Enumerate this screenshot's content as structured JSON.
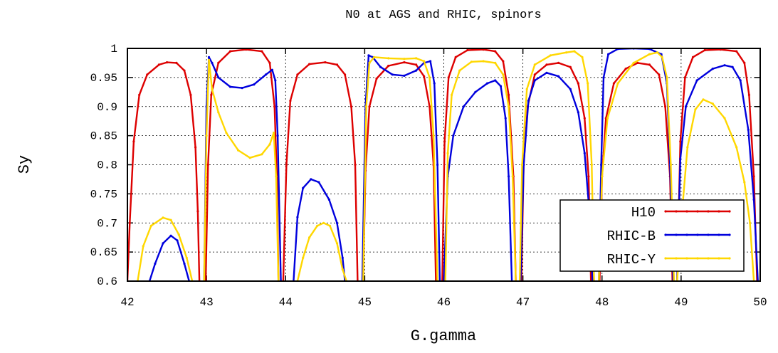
{
  "chart_data": {
    "type": "line",
    "title": "N0 at AGS and RHIC, spinors",
    "xlabel": "G.gamma",
    "ylabel": "Sy",
    "xlim": [
      42,
      50
    ],
    "ylim": [
      0.6,
      1.0
    ],
    "x_ticks": [
      42,
      43,
      44,
      45,
      46,
      47,
      48,
      49,
      50
    ],
    "x_tick_labels": [
      "42",
      "43",
      "44",
      "45",
      "46",
      "47",
      "48",
      "49",
      "50"
    ],
    "y_ticks": [
      0.6,
      0.65,
      0.7,
      0.75,
      0.8,
      0.85,
      0.9,
      0.95,
      1.0
    ],
    "y_tick_labels": [
      "0.6",
      "0.65",
      "0.7",
      "0.75",
      "0.8",
      "0.85",
      "0.9",
      "0.95",
      "1"
    ],
    "grid": true,
    "legend_position": "bottom-right",
    "series": [
      {
        "name": "H10",
        "color": "#dd0000",
        "segments": [
          [
            [
              42.0,
              0.6
            ],
            [
              42.03,
              0.7
            ],
            [
              42.08,
              0.84
            ],
            [
              42.15,
              0.92
            ],
            [
              42.25,
              0.955
            ],
            [
              42.4,
              0.972
            ],
            [
              42.5,
              0.976
            ],
            [
              42.62,
              0.975
            ],
            [
              42.72,
              0.962
            ],
            [
              42.8,
              0.92
            ],
            [
              42.86,
              0.83
            ],
            [
              42.89,
              0.72
            ],
            [
              42.91,
              0.6
            ]
          ],
          [
            [
              42.99,
              0.6
            ],
            [
              43.02,
              0.8
            ],
            [
              43.06,
              0.92
            ],
            [
              43.15,
              0.975
            ],
            [
              43.3,
              0.995
            ],
            [
              43.5,
              0.998
            ],
            [
              43.7,
              0.995
            ],
            [
              43.8,
              0.975
            ],
            [
              43.86,
              0.9
            ],
            [
              43.89,
              0.78
            ],
            [
              43.91,
              0.6
            ]
          ],
          [
            [
              43.97,
              0.6
            ],
            [
              44.01,
              0.8
            ],
            [
              44.06,
              0.91
            ],
            [
              44.15,
              0.955
            ],
            [
              44.3,
              0.973
            ],
            [
              44.5,
              0.976
            ],
            [
              44.65,
              0.972
            ],
            [
              44.75,
              0.955
            ],
            [
              44.83,
              0.9
            ],
            [
              44.88,
              0.8
            ],
            [
              44.91,
              0.6
            ]
          ],
          [
            [
              44.98,
              0.6
            ],
            [
              45.01,
              0.79
            ],
            [
              45.06,
              0.9
            ],
            [
              45.15,
              0.948
            ],
            [
              45.3,
              0.97
            ],
            [
              45.5,
              0.976
            ],
            [
              45.65,
              0.972
            ],
            [
              45.75,
              0.952
            ],
            [
              45.82,
              0.9
            ],
            [
              45.87,
              0.8
            ],
            [
              45.9,
              0.6
            ]
          ],
          [
            [
              45.98,
              0.6
            ],
            [
              46.01,
              0.84
            ],
            [
              46.06,
              0.95
            ],
            [
              46.15,
              0.985
            ],
            [
              46.3,
              0.997
            ],
            [
              46.5,
              0.998
            ],
            [
              46.65,
              0.995
            ],
            [
              46.75,
              0.978
            ],
            [
              46.82,
              0.92
            ],
            [
              46.88,
              0.78
            ],
            [
              46.91,
              0.6
            ]
          ],
          [
            [
              46.98,
              0.6
            ],
            [
              47.01,
              0.8
            ],
            [
              47.06,
              0.9
            ],
            [
              47.15,
              0.955
            ],
            [
              47.3,
              0.972
            ],
            [
              47.45,
              0.975
            ],
            [
              47.6,
              0.968
            ],
            [
              47.7,
              0.94
            ],
            [
              47.78,
              0.88
            ],
            [
              47.83,
              0.78
            ],
            [
              47.86,
              0.6
            ]
          ],
          [
            [
              47.97,
              0.6
            ],
            [
              48.0,
              0.78
            ],
            [
              48.05,
              0.88
            ],
            [
              48.15,
              0.94
            ],
            [
              48.3,
              0.965
            ],
            [
              48.45,
              0.975
            ],
            [
              48.6,
              0.972
            ],
            [
              48.72,
              0.955
            ],
            [
              48.8,
              0.9
            ],
            [
              48.86,
              0.78
            ],
            [
              48.89,
              0.6
            ]
          ],
          [
            [
              48.95,
              0.6
            ],
            [
              48.99,
              0.84
            ],
            [
              49.05,
              0.95
            ],
            [
              49.15,
              0.985
            ],
            [
              49.3,
              0.997
            ],
            [
              49.5,
              0.998
            ],
            [
              49.7,
              0.995
            ],
            [
              49.8,
              0.975
            ],
            [
              49.86,
              0.92
            ],
            [
              49.92,
              0.78
            ],
            [
              49.96,
              0.6
            ]
          ]
        ]
      },
      {
        "name": "RHIC-B",
        "color": "#0000dd",
        "segments": [
          [
            [
              42.28,
              0.6
            ],
            [
              42.35,
              0.63
            ],
            [
              42.45,
              0.665
            ],
            [
              42.55,
              0.678
            ],
            [
              42.63,
              0.67
            ],
            [
              42.72,
              0.63
            ],
            [
              42.78,
              0.6
            ]
          ],
          [
            [
              42.97,
              0.6
            ],
            [
              43.0,
              0.9
            ],
            [
              43.03,
              0.985
            ],
            [
              43.07,
              0.975
            ],
            [
              43.15,
              0.95
            ],
            [
              43.3,
              0.934
            ],
            [
              43.45,
              0.932
            ],
            [
              43.6,
              0.938
            ],
            [
              43.75,
              0.955
            ],
            [
              43.83,
              0.963
            ],
            [
              43.87,
              0.945
            ],
            [
              43.9,
              0.85
            ],
            [
              43.94,
              0.6
            ]
          ],
          [
            [
              44.1,
              0.6
            ],
            [
              44.15,
              0.71
            ],
            [
              44.22,
              0.76
            ],
            [
              44.32,
              0.775
            ],
            [
              44.42,
              0.77
            ],
            [
              44.55,
              0.74
            ],
            [
              44.65,
              0.7
            ],
            [
              44.72,
              0.64
            ],
            [
              44.75,
              0.6
            ]
          ],
          [
            [
              44.97,
              0.6
            ],
            [
              45.01,
              0.9
            ],
            [
              45.05,
              0.988
            ],
            [
              45.1,
              0.985
            ],
            [
              45.2,
              0.968
            ],
            [
              45.35,
              0.955
            ],
            [
              45.5,
              0.953
            ],
            [
              45.65,
              0.962
            ],
            [
              45.75,
              0.975
            ],
            [
              45.83,
              0.978
            ],
            [
              45.88,
              0.94
            ],
            [
              45.92,
              0.8
            ],
            [
              45.95,
              0.6
            ]
          ],
          [
            [
              46.0,
              0.6
            ],
            [
              46.05,
              0.78
            ],
            [
              46.12,
              0.85
            ],
            [
              46.25,
              0.9
            ],
            [
              46.4,
              0.925
            ],
            [
              46.55,
              0.94
            ],
            [
              46.65,
              0.945
            ],
            [
              46.72,
              0.935
            ],
            [
              46.78,
              0.88
            ],
            [
              46.82,
              0.78
            ],
            [
              46.86,
              0.6
            ]
          ],
          [
            [
              46.97,
              0.6
            ],
            [
              47.01,
              0.8
            ],
            [
              47.07,
              0.91
            ],
            [
              47.15,
              0.945
            ],
            [
              47.3,
              0.958
            ],
            [
              47.45,
              0.952
            ],
            [
              47.6,
              0.93
            ],
            [
              47.7,
              0.89
            ],
            [
              47.78,
              0.82
            ],
            [
              47.84,
              0.72
            ],
            [
              47.88,
              0.6
            ]
          ],
          [
            [
              47.96,
              0.6
            ],
            [
              47.99,
              0.8
            ],
            [
              48.02,
              0.95
            ],
            [
              48.08,
              0.99
            ],
            [
              48.2,
              0.999
            ],
            [
              48.4,
              1.0
            ],
            [
              48.6,
              0.999
            ],
            [
              48.75,
              0.99
            ],
            [
              48.82,
              0.94
            ],
            [
              48.86,
              0.8
            ],
            [
              48.9,
              0.6
            ]
          ],
          [
            [
              48.95,
              0.6
            ],
            [
              48.99,
              0.81
            ],
            [
              49.06,
              0.9
            ],
            [
              49.2,
              0.945
            ],
            [
              49.4,
              0.965
            ],
            [
              49.55,
              0.971
            ],
            [
              49.65,
              0.968
            ],
            [
              49.75,
              0.945
            ],
            [
              49.85,
              0.86
            ],
            [
              49.92,
              0.74
            ],
            [
              49.97,
              0.6
            ]
          ]
        ]
      },
      {
        "name": "RHIC-Y",
        "color": "#ffd700",
        "segments": [
          [
            [
              42.13,
              0.6
            ],
            [
              42.2,
              0.66
            ],
            [
              42.3,
              0.695
            ],
            [
              42.45,
              0.709
            ],
            [
              42.55,
              0.705
            ],
            [
              42.65,
              0.68
            ],
            [
              42.75,
              0.64
            ],
            [
              42.82,
              0.6
            ]
          ],
          [
            [
              42.97,
              0.6
            ],
            [
              43.0,
              0.85
            ],
            [
              43.03,
              0.98
            ],
            [
              43.07,
              0.93
            ],
            [
              43.15,
              0.89
            ],
            [
              43.25,
              0.855
            ],
            [
              43.4,
              0.825
            ],
            [
              43.55,
              0.812
            ],
            [
              43.7,
              0.818
            ],
            [
              43.8,
              0.835
            ],
            [
              43.85,
              0.855
            ],
            [
              43.88,
              0.78
            ],
            [
              43.91,
              0.6
            ]
          ],
          [
            [
              44.15,
              0.6
            ],
            [
              44.22,
              0.64
            ],
            [
              44.3,
              0.675
            ],
            [
              44.4,
              0.695
            ],
            [
              44.48,
              0.7
            ],
            [
              44.56,
              0.695
            ],
            [
              44.65,
              0.665
            ],
            [
              44.72,
              0.62
            ],
            [
              44.77,
              0.6
            ]
          ],
          [
            [
              44.98,
              0.6
            ],
            [
              45.02,
              0.9
            ],
            [
              45.06,
              0.975
            ],
            [
              45.12,
              0.985
            ],
            [
              45.3,
              0.983
            ],
            [
              45.5,
              0.982
            ],
            [
              45.65,
              0.983
            ],
            [
              45.75,
              0.978
            ],
            [
              45.82,
              0.95
            ],
            [
              45.87,
              0.85
            ],
            [
              45.92,
              0.6
            ]
          ],
          [
            [
              46.02,
              0.6
            ],
            [
              46.05,
              0.82
            ],
            [
              46.1,
              0.92
            ],
            [
              46.2,
              0.962
            ],
            [
              46.35,
              0.977
            ],
            [
              46.5,
              0.978
            ],
            [
              46.65,
              0.975
            ],
            [
              46.75,
              0.955
            ],
            [
              46.82,
              0.9
            ],
            [
              46.87,
              0.78
            ],
            [
              46.91,
              0.6
            ]
          ],
          [
            [
              46.96,
              0.6
            ],
            [
              46.99,
              0.8
            ],
            [
              47.05,
              0.93
            ],
            [
              47.15,
              0.972
            ],
            [
              47.35,
              0.988
            ],
            [
              47.55,
              0.993
            ],
            [
              47.65,
              0.995
            ],
            [
              47.75,
              0.985
            ],
            [
              47.82,
              0.94
            ],
            [
              47.87,
              0.8
            ],
            [
              47.9,
              0.6
            ]
          ],
          [
            [
              47.96,
              0.6
            ],
            [
              48.0,
              0.78
            ],
            [
              48.07,
              0.88
            ],
            [
              48.2,
              0.94
            ],
            [
              48.4,
              0.975
            ],
            [
              48.6,
              0.99
            ],
            [
              48.7,
              0.993
            ],
            [
              48.76,
              0.985
            ],
            [
              48.82,
              0.95
            ],
            [
              48.87,
              0.8
            ],
            [
              48.91,
              0.6
            ]
          ],
          [
            [
              48.95,
              0.6
            ],
            [
              49.0,
              0.7
            ],
            [
              49.08,
              0.83
            ],
            [
              49.18,
              0.895
            ],
            [
              49.28,
              0.912
            ],
            [
              49.4,
              0.905
            ],
            [
              49.55,
              0.88
            ],
            [
              49.7,
              0.83
            ],
            [
              49.8,
              0.77
            ],
            [
              49.87,
              0.7
            ],
            [
              49.92,
              0.6
            ]
          ]
        ]
      }
    ]
  }
}
